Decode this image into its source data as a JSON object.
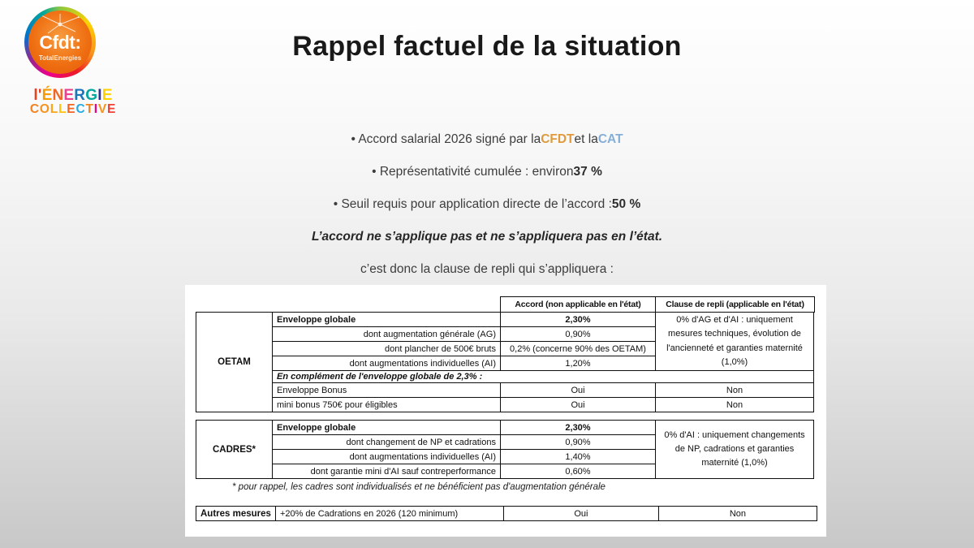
{
  "slide": {
    "title": "Rappel factuel de la situation",
    "bullet1": {
      "prefix": "• Accord salarial 2026 signé par la ",
      "cfdt": "CFDT",
      "middle": " et la ",
      "cat": "CAT"
    },
    "bullet2": {
      "prefix": "• Représentativité cumulée : environ ",
      "value": "37 %"
    },
    "bullet3": {
      "prefix": "• Seuil requis pour application directe de l’accord : ",
      "value": "50 %"
    },
    "statement": "L’accord ne s’applique pas et ne s’appliquera pas en l’état.",
    "conclusion": "c’est donc la clause de repli qui s’appliquera :"
  },
  "colors": {
    "cfdt_orange": "#e09a3c",
    "cat_blue": "#85aed8",
    "logo_orange": "#ef7012"
  },
  "logo": {
    "brand": "Cfdt:",
    "brand_sub": "TotalEnergies",
    "tagline_line1": [
      {
        "ch": "l'",
        "color": "#e8431f"
      },
      {
        "ch": "É",
        "color": "#f59c00"
      },
      {
        "ch": "N",
        "color": "#f26522"
      },
      {
        "ch": "E",
        "color": "#e94190"
      },
      {
        "ch": "R",
        "color": "#1b75bb"
      },
      {
        "ch": "G",
        "color": "#00a79d"
      },
      {
        "ch": "I",
        "color": "#2e3192"
      },
      {
        "ch": "E",
        "color": "#ffd100"
      }
    ],
    "tagline_line2": [
      {
        "ch": "C",
        "color": "#f58220"
      },
      {
        "ch": "O",
        "color": "#f7941d"
      },
      {
        "ch": "L",
        "color": "#faa61a"
      },
      {
        "ch": "L",
        "color": "#ffc20e"
      },
      {
        "ch": "E",
        "color": "#f26522"
      },
      {
        "ch": "C",
        "color": "#29abe2"
      },
      {
        "ch": "T",
        "color": "#f58220"
      },
      {
        "ch": "I",
        "color": "#ec008c"
      },
      {
        "ch": "V",
        "color": "#f7941d"
      },
      {
        "ch": "E",
        "color": "#ef4136"
      }
    ]
  },
  "table": {
    "headers": {
      "accord": "Accord (non applicable en l'état)",
      "clause": "Clause de repli (applicable en l'état)"
    },
    "oetam": {
      "group": "OETAM",
      "rows": [
        {
          "label": "Enveloppe globale",
          "value": "2,30%"
        },
        {
          "label": "dont augmentation générale (AG)",
          "value": "0,90%"
        },
        {
          "label": "dont plancher de 500€ bruts",
          "value": "0,2% (concerne 90% des OETAM)"
        },
        {
          "label": "dont augmentations individuelles (AI)",
          "value": "1,20%"
        }
      ],
      "clause": "0% d'AG et d'AI : uniquement mesures techniques, évolution de l'ancienneté et garanties maternité (1,0%)",
      "complement": "En complément de l'enveloppe globale de 2,3% :",
      "extra_rows": [
        {
          "label": "Enveloppe Bonus",
          "accord": "Oui",
          "clause": "Non"
        },
        {
          "label": "mini bonus 750€ pour éligibles",
          "accord": "Oui",
          "clause": "Non"
        }
      ]
    },
    "cadres": {
      "group": "CADRES*",
      "rows": [
        {
          "label": "Enveloppe globale",
          "value": "2,30%"
        },
        {
          "label": "dont changement de NP et cadrations",
          "value": "0,90%"
        },
        {
          "label": "dont augmentations individuelles (AI)",
          "value": "1,40%"
        },
        {
          "label": "dont garantie mini d'AI sauf contreperformance",
          "value": "0,60%"
        }
      ],
      "clause": "0% d'AI : uniquement changements de NP, cadrations et garanties maternité (1,0%)"
    },
    "footnote": "* pour rappel, les cadres sont individualisés et ne bénéficient pas d'augmentation générale",
    "autres": {
      "group": "Autres mesures",
      "label": "+20% de Cadrations en 2026 (120 minimum)",
      "accord": "Oui",
      "clause": "Non"
    }
  }
}
